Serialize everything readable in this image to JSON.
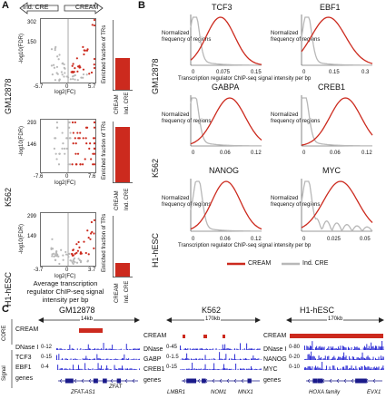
{
  "panels": {
    "a": "A",
    "b": "B",
    "c": "C"
  },
  "colors": {
    "cream": "#cc2a1e",
    "ind": "#b8b8b8",
    "track": "#1a1ad0",
    "dark": "#222222"
  },
  "panelA": {
    "arrow_left": "Ind. CRE",
    "arrow_right": "CREAM",
    "bar_ylabel": "Enriched fraction of TRs",
    "bar_xlabel_1": "CREAM",
    "bar_xlabel_2": "Ind. CRE",
    "footer": "Average transcription regulator ChIP-seq signal intensity per bp",
    "rows": [
      {
        "cell": "GM12878",
        "ymax": "302",
        "ymid": "150",
        "ylabel": "-log10(FDR)",
        "xmin": "-5.7",
        "xzero": "0",
        "xmax": "5.7",
        "xlabel": "log2(FC)"
      },
      {
        "cell": "K562",
        "ymax": "293",
        "ymid": "146",
        "ylabel": "-log10(FDR)",
        "xmin": "-7.6",
        "xzero": "0",
        "xmax": "7.6",
        "xlabel": "log2(FC)"
      },
      {
        "cell": "H1-hESC",
        "ymax": "299",
        "ymid": "149",
        "ylabel": "-log10(FDR)",
        "xmin": "-3.7",
        "xzero": "0",
        "xmax": "3.7",
        "xlabel": "log2(FC)"
      }
    ]
  },
  "panelB": {
    "ylabel_1": "Normalized",
    "ylabel_2": "frequency of regions",
    "xlabel": "Transcription regulator ChIP-seq signal intensity per bp",
    "legend": {
      "cream": "CREAM",
      "ind": "Ind. CRE"
    },
    "rows": [
      {
        "cell": "GM12878",
        "left": {
          "tf": "TCF3",
          "ticks": [
            "0",
            "0.075",
            "0.15"
          ]
        },
        "right": {
          "tf": "EBF1",
          "ticks": [
            "0",
            "0.15",
            "0.3"
          ]
        }
      },
      {
        "cell": "K562",
        "left": {
          "tf": "GABPA",
          "ticks": [
            "0",
            "0.06",
            "0.12"
          ]
        },
        "right": {
          "tf": "CREB1",
          "ticks": [
            "0",
            "0.06",
            "0.12"
          ]
        }
      },
      {
        "cell": "H1-hESC",
        "left": {
          "tf": "NANOG",
          "ticks": [
            "0",
            "0.06",
            "0.12"
          ]
        },
        "right": {
          "tf": "MYC",
          "ticks": [
            "0",
            "0.025",
            "0.05"
          ]
        }
      }
    ]
  },
  "panelC": {
    "group_core": "CORE",
    "group_signal": "Signal",
    "cream_label": "CREAM",
    "genes_label": "genes",
    "loci": [
      {
        "cell": "GM12878",
        "scale": "14kb",
        "tracks": [
          {
            "name": "DNase I",
            "ymax": "0-12"
          },
          {
            "name": "TCF3",
            "ymax": "0-15"
          },
          {
            "name": "EBF1",
            "ymax": "0-4"
          }
        ],
        "genes": [
          "ZFAT-AS1",
          "ZFAT"
        ]
      },
      {
        "cell": "K562",
        "scale": "170kb",
        "tracks": [
          {
            "name": "DNase",
            "ymax": "0-45"
          },
          {
            "name": "GABP",
            "ymax": "0-1.5"
          },
          {
            "name": "CREB1",
            "ymax": "0-15"
          }
        ],
        "genes": [
          "LMBR1",
          "NOM1",
          "MNX1"
        ]
      },
      {
        "cell": "H1-hESC",
        "scale": "170kb",
        "tracks": [
          {
            "name": "DNase I",
            "ymax": "0-80"
          },
          {
            "name": "NANOG",
            "ymax": "0-20"
          },
          {
            "name": "MYC",
            "ymax": "0-10"
          }
        ],
        "genes": [
          "HOXA family",
          "EVX1"
        ]
      }
    ]
  }
}
